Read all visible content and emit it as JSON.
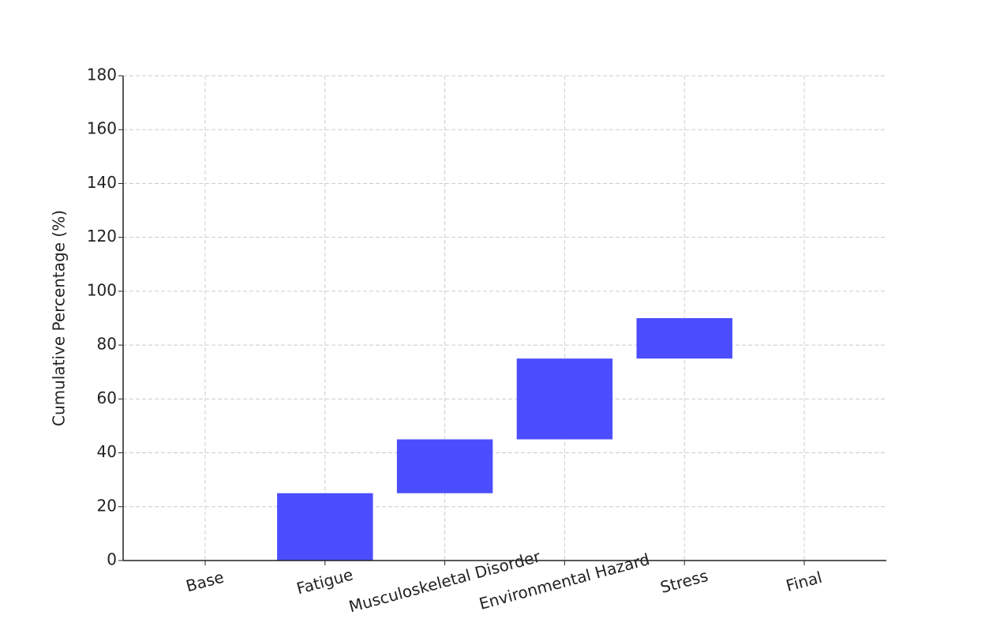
{
  "chart_data": {
    "type": "waterfall",
    "y_label": "Cumulative Percentage (%)",
    "categories": [
      "Base",
      "Fatigue",
      "Musculoskeletal Disorder",
      "Environmental Hazard",
      "Stress",
      "Final"
    ],
    "values": [
      0,
      25,
      20,
      30,
      15,
      0
    ],
    "color": "#4b4dff",
    "ylim": [
      0,
      180
    ],
    "yticks": [
      0,
      20,
      40,
      60,
      80,
      100,
      120,
      140,
      160,
      180
    ],
    "grid": true
  }
}
